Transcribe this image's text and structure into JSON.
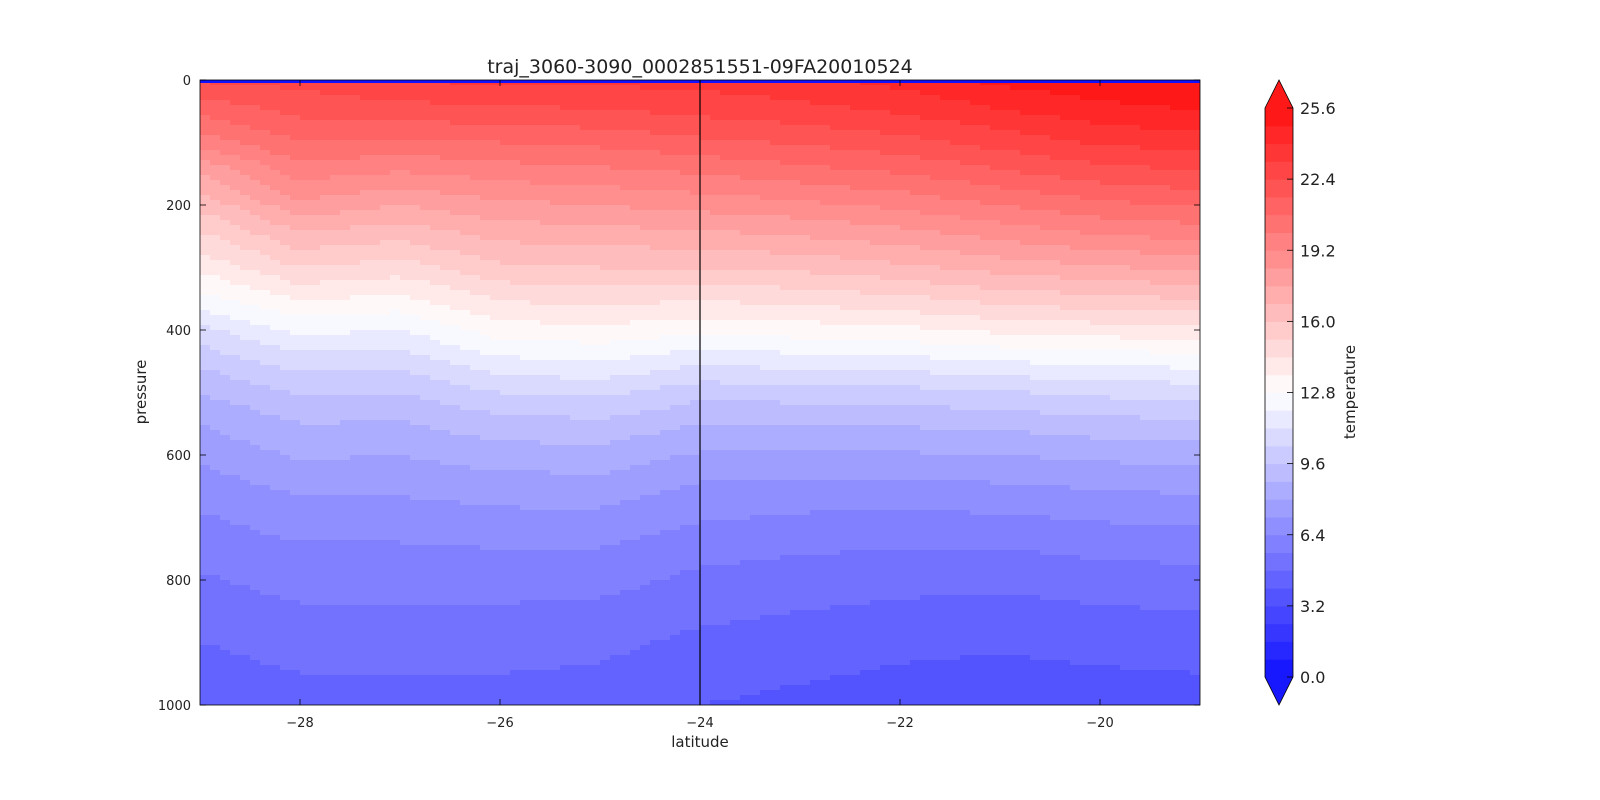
{
  "chart_data": {
    "type": "heatmap",
    "title": "traj_3060-3090_0002851551-09FA20010524",
    "xlabel": "latitude",
    "ylabel": "pressure",
    "colorbar_label": "temperature",
    "xlim": [
      -29,
      -19
    ],
    "ylim": [
      1000,
      0
    ],
    "x_ticks": [
      -28,
      -26,
      -24,
      -22,
      -20
    ],
    "x_tick_labels": [
      "−28",
      "−26",
      "−24",
      "−22",
      "−20"
    ],
    "y_ticks": [
      0,
      200,
      400,
      600,
      800,
      1000
    ],
    "y_tick_labels": [
      "0",
      "200",
      "400",
      "600",
      "800",
      "1000"
    ],
    "colorbar_ticks": [
      0.0,
      3.2,
      6.4,
      9.6,
      12.8,
      16.0,
      19.2,
      22.4,
      25.6
    ],
    "colorbar_tick_labels": [
      "0.0",
      "3.2",
      "6.4",
      "9.6",
      "12.8",
      "16.0",
      "19.2",
      "22.4",
      "25.6"
    ],
    "colorbar_range": [
      0.0,
      25.6
    ],
    "colorbar_extend": "both",
    "colormap": "bwr",
    "colors": {
      "cold": "#1111ff",
      "mid": "#ffffff",
      "warm": "#ff1111"
    },
    "vertical_marker_latitude": -24,
    "pressure_levels": [
      0,
      50,
      100,
      150,
      200,
      250,
      300,
      350,
      400,
      450,
      500,
      550,
      600,
      650,
      700,
      750,
      800,
      850,
      900,
      950,
      1000
    ],
    "latitude_profiles": [
      {
        "latitude": -29.0,
        "temperature": [
          22.5,
          21.0,
          19.5,
          17.5,
          16.2,
          15.0,
          13.8,
          12.5,
          11.0,
          9.8,
          8.8,
          8.0,
          7.4,
          6.8,
          6.3,
          5.9,
          5.5,
          5.1,
          4.8,
          4.5,
          4.3
        ]
      },
      {
        "latitude": -28.0,
        "temperature": [
          22.7,
          21.8,
          20.8,
          19.5,
          18.2,
          16.6,
          15.2,
          13.7,
          12.2,
          10.8,
          9.7,
          8.8,
          8.1,
          7.4,
          6.8,
          6.3,
          5.9,
          5.5,
          5.1,
          4.8,
          4.5
        ]
      },
      {
        "latitude": -27.0,
        "temperature": [
          23.2,
          22.0,
          20.6,
          19.1,
          17.6,
          16.2,
          14.8,
          13.4,
          12.0,
          10.7,
          9.6,
          8.7,
          8.0,
          7.4,
          6.8,
          6.3,
          5.9,
          5.5,
          5.1,
          4.8,
          4.5
        ]
      },
      {
        "latitude": -26.0,
        "temperature": [
          23.4,
          22.2,
          20.8,
          19.5,
          18.2,
          17.0,
          15.8,
          14.5,
          13.2,
          11.8,
          10.4,
          9.3,
          8.4,
          7.6,
          7.0,
          6.4,
          5.9,
          5.5,
          5.1,
          4.8,
          4.5
        ]
      },
      {
        "latitude": -25.0,
        "temperature": [
          23.4,
          22.3,
          21.0,
          19.7,
          18.4,
          17.2,
          16.0,
          14.7,
          13.4,
          12.0,
          10.6,
          9.4,
          8.5,
          7.7,
          7.0,
          6.4,
          5.9,
          5.4,
          5.0,
          4.7,
          4.4
        ]
      },
      {
        "latitude": -24.0,
        "temperature": [
          23.5,
          22.6,
          21.4,
          20.0,
          18.7,
          17.3,
          16.0,
          14.5,
          13.0,
          11.4,
          9.9,
          8.8,
          7.9,
          7.1,
          6.5,
          5.9,
          5.4,
          5.0,
          4.6,
          4.3,
          4.0
        ]
      },
      {
        "latitude": -23.0,
        "temperature": [
          23.8,
          22.9,
          21.7,
          20.4,
          19.0,
          17.6,
          16.2,
          14.7,
          13.2,
          11.6,
          10.0,
          8.8,
          7.8,
          7.0,
          6.3,
          5.7,
          5.2,
          4.8,
          4.4,
          4.1,
          3.8
        ]
      },
      {
        "latitude": -22.0,
        "temperature": [
          24.3,
          23.3,
          22.1,
          20.8,
          19.4,
          18.0,
          16.6,
          15.0,
          13.4,
          11.7,
          10.1,
          8.9,
          7.9,
          7.0,
          6.2,
          5.6,
          5.1,
          4.6,
          4.2,
          3.9,
          3.6
        ]
      },
      {
        "latitude": -21.0,
        "temperature": [
          25.0,
          23.9,
          22.7,
          21.4,
          20.0,
          18.6,
          17.1,
          15.5,
          13.8,
          12.0,
          10.3,
          9.0,
          8.0,
          7.1,
          6.3,
          5.6,
          5.0,
          4.5,
          4.1,
          3.8,
          3.5
        ]
      },
      {
        "latitude": -20.0,
        "temperature": [
          25.4,
          24.5,
          23.3,
          22.0,
          20.6,
          19.1,
          17.5,
          15.8,
          14.0,
          12.2,
          10.6,
          9.3,
          8.2,
          7.3,
          6.5,
          5.8,
          5.2,
          4.7,
          4.3,
          3.9,
          3.6
        ]
      },
      {
        "latitude": -19.0,
        "temperature": [
          25.6,
          24.8,
          23.6,
          22.3,
          20.9,
          19.4,
          17.8,
          16.0,
          14.2,
          12.4,
          10.7,
          9.4,
          8.3,
          7.4,
          6.6,
          5.9,
          5.3,
          4.8,
          4.3,
          4.0,
          3.7
        ]
      }
    ]
  }
}
